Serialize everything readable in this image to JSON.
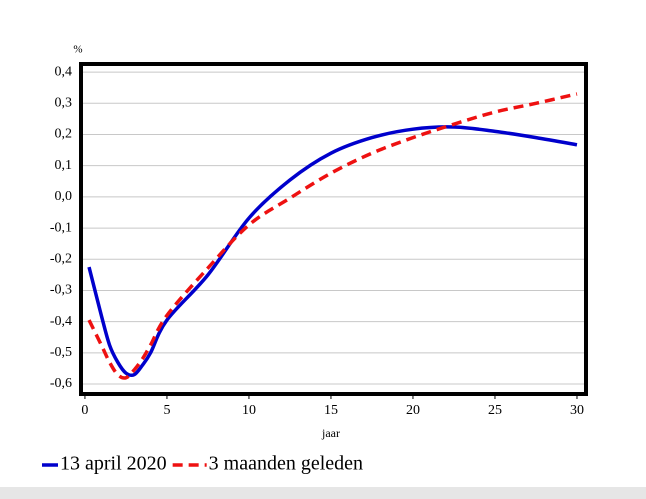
{
  "chart_data": {
    "type": "line",
    "unit": "%",
    "xlabel": "jaar",
    "x": [
      0.25,
      1,
      1.5,
      2,
      2.5,
      3,
      3.5,
      4,
      5,
      7.5,
      10,
      12.5,
      15,
      17.5,
      20,
      22.5,
      25,
      27.5,
      30
    ],
    "series": [
      {
        "name": "13 april 2020",
        "color": "#0000cc",
        "style": "solid",
        "values": [
          -0.225,
          -0.38,
          -0.475,
          -0.53,
          -0.565,
          -0.57,
          -0.54,
          -0.5,
          -0.395,
          -0.25,
          -0.068,
          0.054,
          0.14,
          0.19,
          0.217,
          0.224,
          0.21,
          0.19,
          0.167
        ]
      },
      {
        "name": "3 maanden geleden",
        "color": "#ee1111",
        "style": "dashed",
        "values": [
          -0.395,
          -0.475,
          -0.53,
          -0.57,
          -0.58,
          -0.555,
          -0.52,
          -0.475,
          -0.38,
          -0.228,
          -0.09,
          -0.004,
          0.076,
          0.14,
          0.19,
          0.233,
          0.272,
          0.3,
          0.33
        ]
      }
    ],
    "xlim": [
      -0.24,
      30.55
    ],
    "xticks": [
      0,
      5,
      10,
      15,
      20,
      25,
      30
    ],
    "ylim": [
      -0.632,
      0.426
    ],
    "yticks": [
      {
        "value": 0.4,
        "label": "0,4"
      },
      {
        "value": 0.3,
        "label": "0,3"
      },
      {
        "value": 0.2,
        "label": "0,2"
      },
      {
        "value": 0.1,
        "label": "0,1"
      },
      {
        "value": 0.0,
        "label": "0,0"
      },
      {
        "value": -0.1,
        "label": "-0,1"
      },
      {
        "value": -0.2,
        "label": "-0,2"
      },
      {
        "value": -0.3,
        "label": "-0,3"
      },
      {
        "value": -0.4,
        "label": "-0,4"
      },
      {
        "value": -0.5,
        "label": "-0,5"
      },
      {
        "value": -0.6,
        "label": "-0,6"
      }
    ],
    "grid": true
  }
}
